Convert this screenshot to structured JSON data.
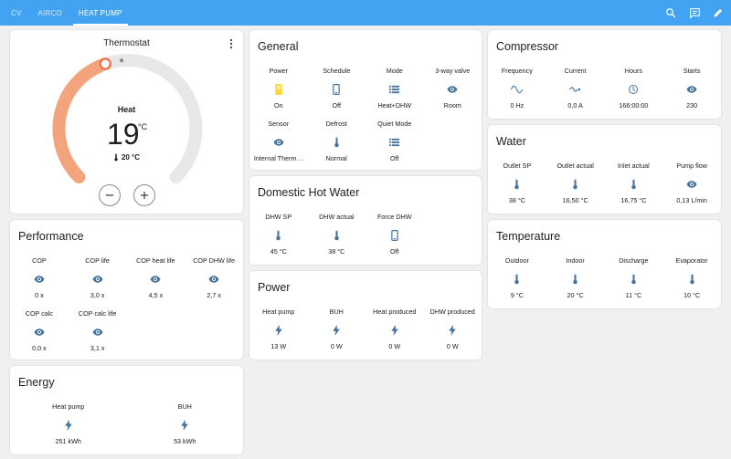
{
  "tabs": [
    {
      "label": "CV"
    },
    {
      "label": "AIRCO"
    },
    {
      "label": "HEAT PUMP"
    }
  ],
  "thermostat": {
    "title": "Thermostat",
    "mode": "Heat",
    "target": "19",
    "unit": "°C",
    "current": "20 °C",
    "setpoint_fraction": 0.43,
    "colors": {
      "active": "#f4a47d",
      "track": "#e8e8e8"
    }
  },
  "general": {
    "title": "General",
    "items": [
      {
        "label": "Power",
        "icon": "power-socket-icon",
        "value": "On"
      },
      {
        "label": "Schedule",
        "icon": "phone-icon",
        "value": "Off"
      },
      {
        "label": "Mode",
        "icon": "list-icon",
        "value": "Heat+DHW"
      },
      {
        "label": "3-way valve",
        "icon": "eye-icon",
        "value": "Room"
      },
      {
        "label": "Sensor",
        "icon": "eye-icon",
        "value": "Internal Therm…"
      },
      {
        "label": "Defrost",
        "icon": "thermometer-icon",
        "value": "Normal"
      },
      {
        "label": "Quiet Mode",
        "icon": "list-icon",
        "value": "Off"
      }
    ]
  },
  "dhw": {
    "title": "Domestic Hot Water",
    "items": [
      {
        "label": "DHW SP",
        "icon": "thermometer-icon",
        "value": "45 °C"
      },
      {
        "label": "DHW actual",
        "icon": "thermometer-icon",
        "value": "38 °C"
      },
      {
        "label": "Force DHW",
        "icon": "phone-icon",
        "value": "Off"
      }
    ]
  },
  "power": {
    "title": "Power",
    "items": [
      {
        "label": "Heat pump",
        "icon": "flash-icon",
        "value": "13 W"
      },
      {
        "label": "BUH",
        "icon": "flash-icon",
        "value": "0 W"
      },
      {
        "label": "Heat produced",
        "icon": "flash-icon",
        "value": "0 W"
      },
      {
        "label": "DHW produced",
        "icon": "flash-icon",
        "value": "0 W"
      }
    ]
  },
  "compressor": {
    "title": "Compressor",
    "items": [
      {
        "label": "Frequency",
        "icon": "sine-wave-icon",
        "value": "0 Hz"
      },
      {
        "label": "Current",
        "icon": "current-icon",
        "value": "0,0 A"
      },
      {
        "label": "Hours",
        "icon": "clock-icon",
        "value": "166:00:00"
      },
      {
        "label": "Starts",
        "icon": "eye-icon",
        "value": "230"
      }
    ]
  },
  "water": {
    "title": "Water",
    "items": [
      {
        "label": "Outlet SP",
        "icon": "thermometer-icon",
        "value": "38 °C"
      },
      {
        "label": "Outlet actual",
        "icon": "thermometer-icon",
        "value": "16,50 °C"
      },
      {
        "label": "Inlet actual",
        "icon": "thermometer-icon",
        "value": "16,75 °C"
      },
      {
        "label": "Pump flow",
        "icon": "eye-icon",
        "value": "0,13 L/min"
      }
    ]
  },
  "temperature": {
    "title": "Temperature",
    "items": [
      {
        "label": "Outdoor",
        "icon": "thermometer-icon",
        "value": "9 °C"
      },
      {
        "label": "Indoor",
        "icon": "thermometer-icon",
        "value": "20 °C"
      },
      {
        "label": "Discharge",
        "icon": "thermometer-icon",
        "value": "11 °C"
      },
      {
        "label": "Evaporator",
        "icon": "thermometer-icon",
        "value": "10 °C"
      }
    ]
  },
  "performance": {
    "title": "Performance",
    "items": [
      {
        "label": "COP",
        "icon": "eye-icon",
        "value": "0 x"
      },
      {
        "label": "COP life",
        "icon": "eye-icon",
        "value": "3,0 x"
      },
      {
        "label": "COP heat life",
        "icon": "eye-icon",
        "value": "4,5 x"
      },
      {
        "label": "COP DHW life",
        "icon": "eye-icon",
        "value": "2,7 x"
      },
      {
        "label": "COP calc",
        "icon": "eye-icon",
        "value": "0,0 x"
      },
      {
        "label": "COP calc life",
        "icon": "eye-icon",
        "value": "3,1 x"
      }
    ]
  },
  "energy": {
    "title": "Energy",
    "items": [
      {
        "label": "Heat pump",
        "icon": "flash-icon",
        "value": "251 kWh"
      },
      {
        "label": "BUH",
        "icon": "flash-icon",
        "value": "53 kWh"
      }
    ]
  },
  "colors": {
    "accent": "#43a3f3",
    "icon": "#44739e",
    "power_on": "#fdd835"
  }
}
